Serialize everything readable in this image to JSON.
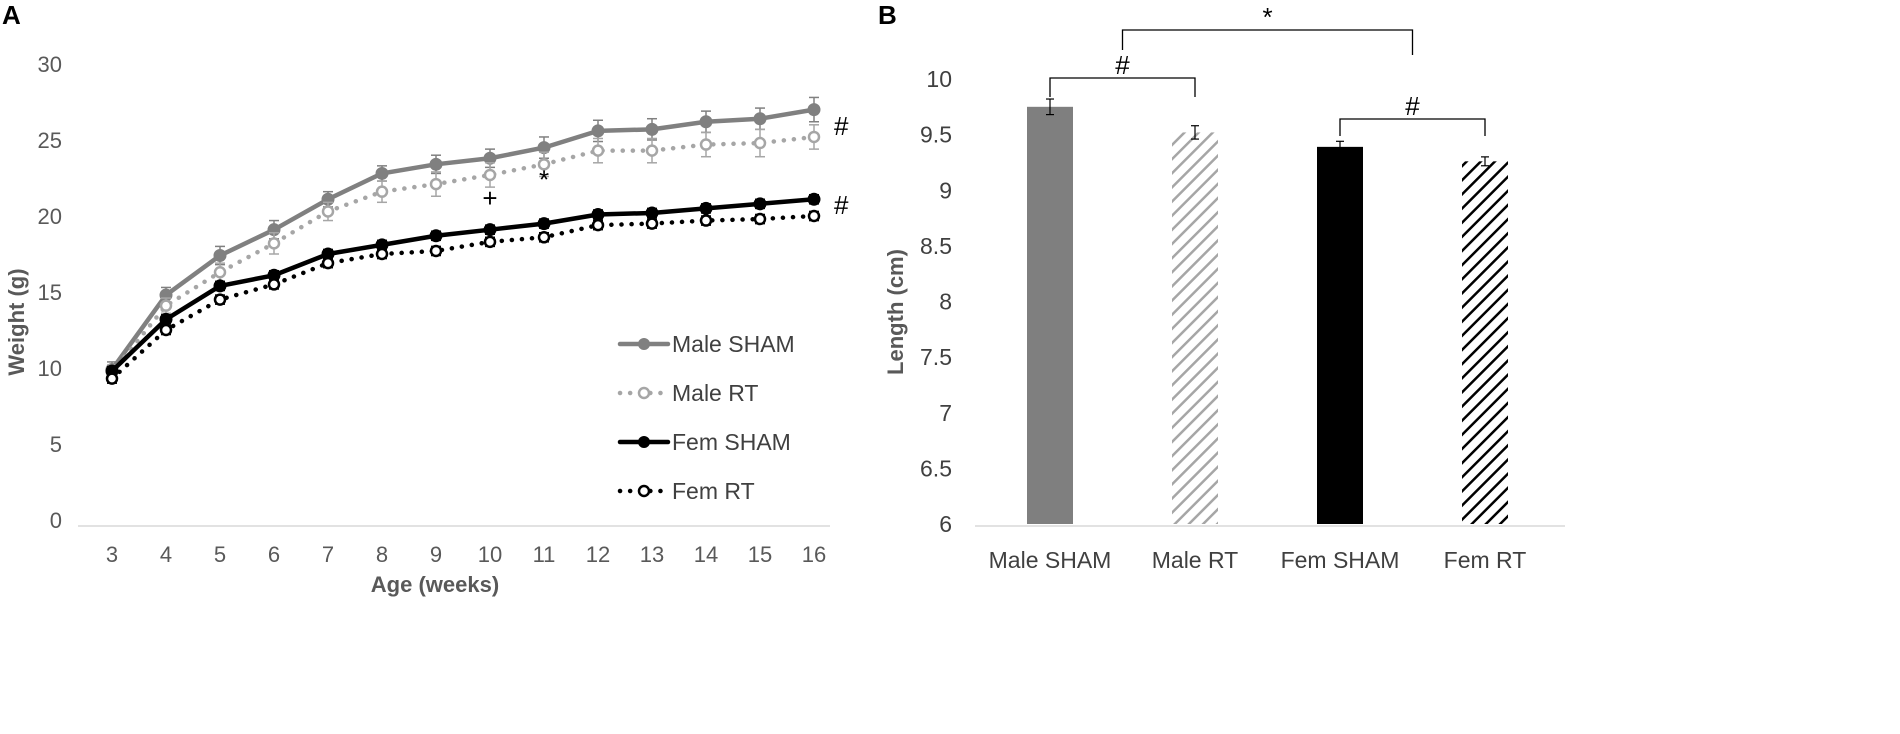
{
  "chart_data": [
    {
      "panel": "A",
      "type": "line",
      "xlabel": "Age (weeks)",
      "ylabel": "Weight (g)",
      "x": [
        3,
        4,
        5,
        6,
        7,
        8,
        9,
        10,
        11,
        12,
        13,
        14,
        15,
        16
      ],
      "ylim": [
        0,
        30
      ],
      "yticks": [
        "0",
        "5",
        "10",
        "15",
        "20",
        "25",
        "30"
      ],
      "legend_position": "right-middle",
      "series": [
        {
          "name": "Male SHAM",
          "color": "#808080",
          "line": "solid",
          "marker": "filled",
          "values": [
            9.9,
            14.8,
            17.4,
            19.1,
            21.1,
            22.8,
            23.4,
            23.8,
            24.5,
            25.6,
            25.7,
            26.2,
            26.4,
            27.0
          ],
          "errors": [
            0.5,
            0.5,
            0.6,
            0.6,
            0.5,
            0.5,
            0.6,
            0.6,
            0.7,
            0.7,
            0.7,
            0.7,
            0.7,
            0.8
          ]
        },
        {
          "name": "Male RT",
          "color": "#a6a6a6",
          "line": "dotted",
          "marker": "open",
          "values": [
            9.7,
            14.1,
            16.3,
            18.2,
            20.3,
            21.6,
            22.1,
            22.7,
            23.4,
            24.3,
            24.3,
            24.7,
            24.8,
            25.2
          ],
          "errors": [
            0.5,
            0.5,
            0.6,
            0.7,
            0.6,
            0.7,
            0.8,
            0.8,
            0.8,
            0.8,
            0.8,
            0.8,
            0.9,
            0.8
          ]
        },
        {
          "name": "Fem SHAM",
          "color": "#000000",
          "line": "solid",
          "marker": "filled",
          "values": [
            9.8,
            13.2,
            15.4,
            16.1,
            17.5,
            18.1,
            18.7,
            19.1,
            19.5,
            20.1,
            20.2,
            20.5,
            20.8,
            21.1
          ],
          "errors": [
            0.3,
            0.3,
            0.3,
            0.3,
            0.3,
            0.3,
            0.3,
            0.3,
            0.3,
            0.3,
            0.3,
            0.3,
            0.3,
            0.3
          ]
        },
        {
          "name": "Fem RT",
          "color": "#000000",
          "line": "dotted",
          "marker": "open",
          "values": [
            9.3,
            12.5,
            14.5,
            15.5,
            16.9,
            17.5,
            17.7,
            18.3,
            18.6,
            19.4,
            19.5,
            19.7,
            19.8,
            20.0
          ],
          "errors": [
            0.3,
            0.3,
            0.3,
            0.3,
            0.3,
            0.3,
            0.3,
            0.3,
            0.3,
            0.3,
            0.3,
            0.3,
            0.3,
            0.3
          ]
        }
      ],
      "annotations": [
        {
          "text": "#",
          "series": "Male RT",
          "x": 16
        },
        {
          "text": "#",
          "series": "Fem RT",
          "x": 16
        },
        {
          "text": "+",
          "x": 10,
          "y": 20.6
        },
        {
          "text": "*",
          "x": 11,
          "y": 21.8
        }
      ]
    },
    {
      "panel": "B",
      "type": "bar",
      "ylabel": "Length (cm)",
      "categories": [
        "Male SHAM",
        "Male RT",
        "Fem SHAM",
        "Fem RT"
      ],
      "values": [
        9.75,
        9.52,
        9.39,
        9.26
      ],
      "errors": [
        0.07,
        0.06,
        0.05,
        0.04
      ],
      "fills": [
        "#7f7f7f",
        "hatch-gray",
        "#000000",
        "hatch-black"
      ],
      "ylim": [
        6,
        10
      ],
      "yticks": [
        "6",
        "6.5",
        "7",
        "7.5",
        "8",
        "8.5",
        "9",
        "9.5",
        "10"
      ],
      "significance": [
        {
          "text": "#",
          "from": 0,
          "to": 1
        },
        {
          "text": "#",
          "from": 2,
          "to": 3
        },
        {
          "text": "*",
          "from": 0.5,
          "to": 2.5
        }
      ]
    }
  ]
}
